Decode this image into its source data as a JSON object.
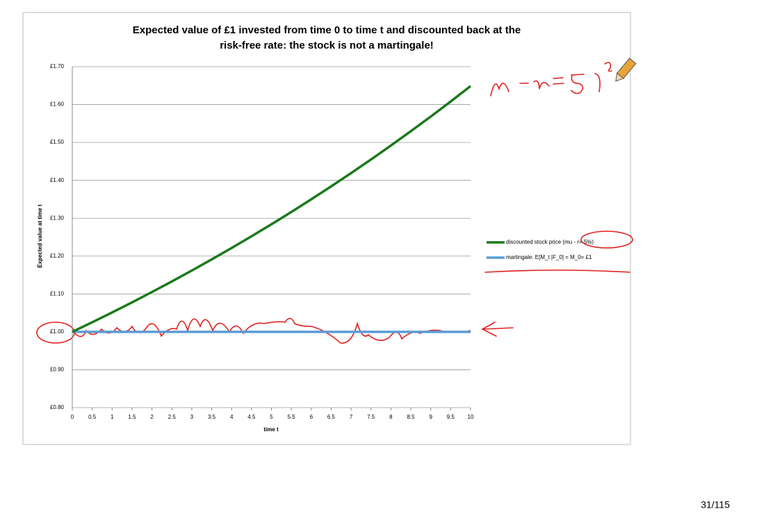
{
  "chart_data": {
    "type": "line",
    "title_lines": [
      "Expected value of £1 invested from time 0 to time t and discounted back at the",
      "risk-free rate: the stock is not a martingale!"
    ],
    "x_label": "time t",
    "y_label": "Expected value at time t",
    "x": [
      0,
      0.5,
      1,
      1.5,
      2,
      2.5,
      3,
      3.5,
      4,
      4.5,
      5,
      5.5,
      6,
      6.5,
      7,
      7.5,
      8,
      8.5,
      9,
      9.5,
      10
    ],
    "xlim": [
      0,
      10
    ],
    "xticks": [
      0,
      0.5,
      1,
      1.5,
      2,
      2.5,
      3,
      3.5,
      4,
      4.5,
      5,
      5.5,
      6,
      6.5,
      7,
      7.5,
      8,
      8.5,
      9,
      9.5,
      10
    ],
    "ylim": [
      0.8,
      1.7
    ],
    "yticks": [
      {
        "value": 0.8,
        "label": "£0.80"
      },
      {
        "value": 0.9,
        "label": "£0.90"
      },
      {
        "value": 1.0,
        "label": "£1.00"
      },
      {
        "value": 1.1,
        "label": "£1.10"
      },
      {
        "value": 1.2,
        "label": "£1.20"
      },
      {
        "value": 1.3,
        "label": "£1.30"
      },
      {
        "value": 1.4,
        "label": "£1.40"
      },
      {
        "value": 1.5,
        "label": "£1.50"
      },
      {
        "value": 1.6,
        "label": "£1.60"
      },
      {
        "value": 1.7,
        "label": "£1.70"
      }
    ],
    "grid": true,
    "legend": "right",
    "series": [
      {
        "name": "discounted stock price (mu - r= 5%)",
        "color": "#1a7a1a",
        "values": [
          1,
          1.0253,
          1.0513,
          1.0779,
          1.1052,
          1.1331,
          1.1618,
          1.1912,
          1.2214,
          1.2523,
          1.284,
          1.3165,
          1.3499,
          1.384,
          1.4191,
          1.455,
          1.4918,
          1.5296,
          1.5683,
          1.608,
          1.6487
        ]
      },
      {
        "name": "martingale: E[M_t |F_0] = M_0= £1",
        "color": "#5b9bd5",
        "values": [
          1,
          1,
          1,
          1,
          1,
          1,
          1,
          1,
          1,
          1,
          1,
          1,
          1,
          1,
          1,
          1,
          1,
          1,
          1,
          1,
          1
        ]
      }
    ]
  },
  "footer": {
    "page": "31/115"
  }
}
